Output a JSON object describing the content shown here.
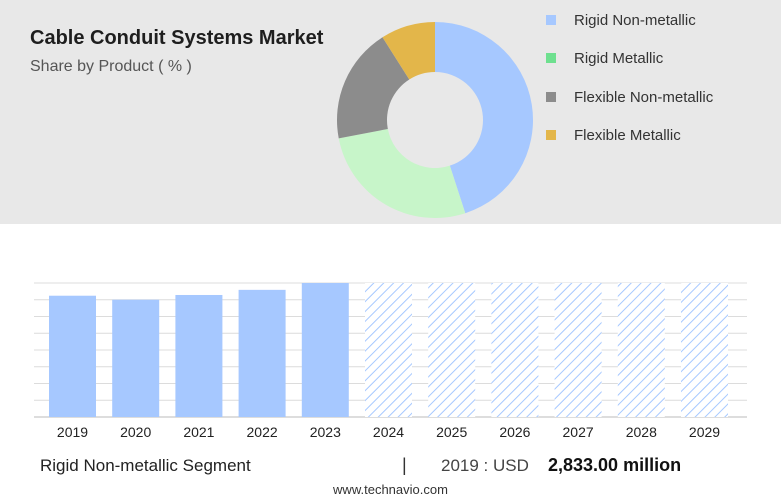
{
  "header": {
    "title": "Cable Conduit Systems Market",
    "subtitle": "Share by Product ( % )"
  },
  "legend": [
    {
      "label": "Rigid Non-metallic",
      "color": "#a6c8ff"
    },
    {
      "label": "Rigid Metallic",
      "color": "#6ee08f"
    },
    {
      "label": "Flexible Non-metallic",
      "color": "#8c8c8c"
    },
    {
      "label": "Flexible Metallic",
      "color": "#e3b64a"
    }
  ],
  "chart_data": [
    {
      "type": "pie",
      "variant": "donut",
      "series": [
        {
          "name": "Rigid Non-metallic",
          "value": 45,
          "color": "#a6c8ff"
        },
        {
          "name": "Rigid Metallic",
          "value": 27,
          "color": "#c7f5c9"
        },
        {
          "name": "Flexible Non-metallic",
          "value": 19,
          "color": "#8c8c8c"
        },
        {
          "name": "Flexible Metallic",
          "value": 9,
          "color": "#e3b64a"
        }
      ]
    },
    {
      "type": "bar",
      "categories": [
        "2019",
        "2020",
        "2021",
        "2022",
        "2023",
        "2024",
        "2025",
        "2026",
        "2027",
        "2028",
        "2029"
      ],
      "values": [
        2833,
        2740,
        2850,
        2970,
        3130,
        null,
        null,
        null,
        null,
        null,
        null
      ],
      "forecast_categories": [
        "2024",
        "2025",
        "2026",
        "2027",
        "2028",
        "2029"
      ],
      "ylim": [
        0,
        3130
      ],
      "grid": true,
      "color": "#a6c8ff"
    }
  ],
  "footer": {
    "segment": "Rigid Non-metallic Segment",
    "divider": "|",
    "year_label": "2019 : USD",
    "value_label": "2,833.00 million",
    "url": "www.technavio.com"
  }
}
